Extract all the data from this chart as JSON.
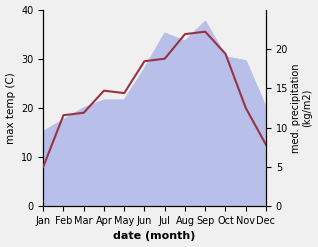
{
  "months": [
    "Jan",
    "Feb",
    "Mar",
    "Apr",
    "May",
    "Jun",
    "Jul",
    "Aug",
    "Sep",
    "Oct",
    "Nov",
    "Dec"
  ],
  "max_temp": [
    8.0,
    18.5,
    19.0,
    23.5,
    23.0,
    29.5,
    30.0,
    35.0,
    35.5,
    31.0,
    20.0,
    12.5
  ],
  "precipitation": [
    9.5,
    11.0,
    12.5,
    13.5,
    13.5,
    17.5,
    22.0,
    21.0,
    23.5,
    19.0,
    18.5,
    12.5
  ],
  "temp_color": "#993344",
  "precip_fill_color": "#b8bfe8",
  "ylabel_left": "max temp (C)",
  "ylabel_right": "med. precipitation\n(kg/m2)",
  "xlabel": "date (month)",
  "ylim_left": [
    0,
    40
  ],
  "ylim_right": [
    0,
    25
  ],
  "yticks_left": [
    0,
    10,
    20,
    30,
    40
  ],
  "yticks_right": [
    0,
    5,
    10,
    15,
    20
  ],
  "background_color": "#f0f0f0",
  "plot_bg_color": "#ffffff"
}
